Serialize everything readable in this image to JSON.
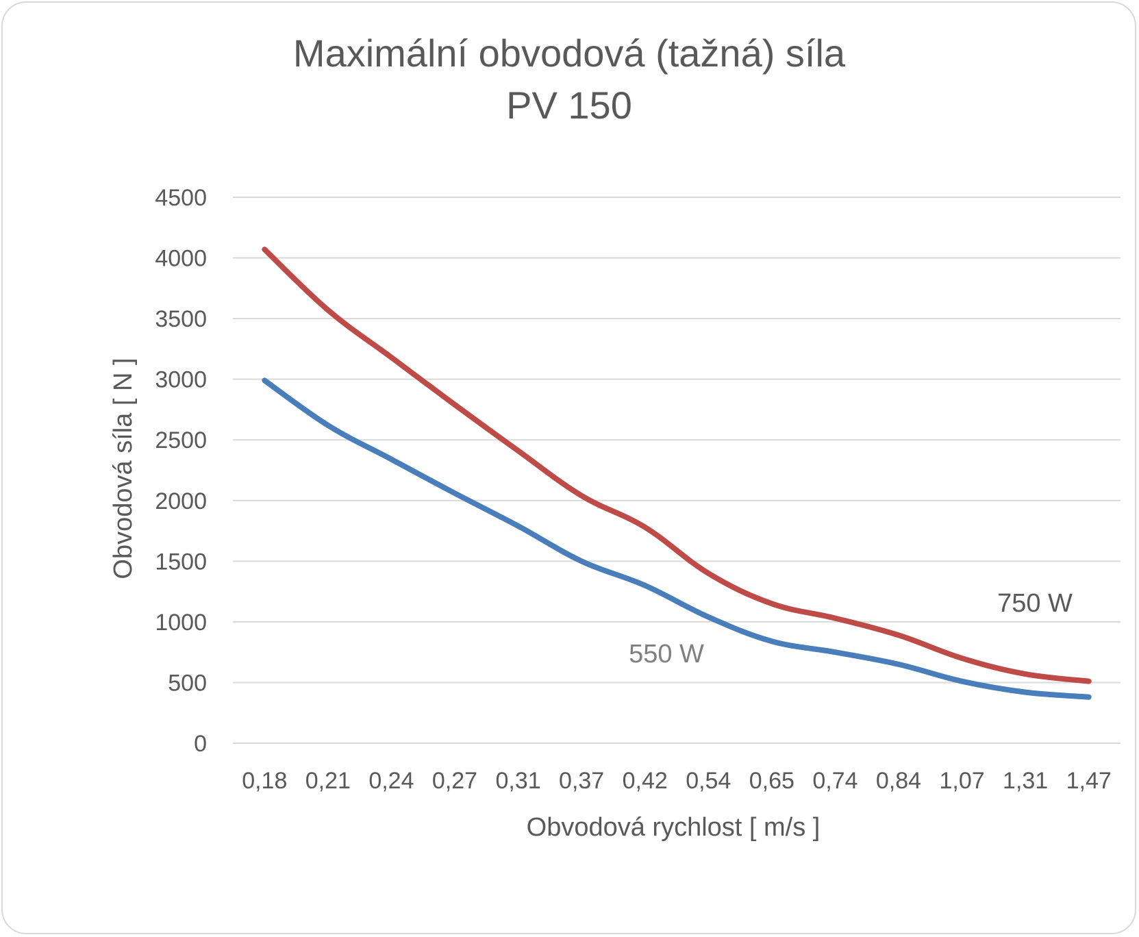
{
  "chart_data": {
    "type": "line",
    "title": "Maximální obvodová (tažná) síla",
    "subtitle": "PV 150",
    "xlabel": "Obvodová rychlost  [ m/s ]",
    "ylabel": "Obvodová síla  [ N ]",
    "ylim": [
      0,
      4500
    ],
    "yticks": [
      "0",
      "500",
      "1000",
      "1500",
      "2000",
      "2500",
      "3000",
      "3500",
      "4000",
      "4500"
    ],
    "grid": true,
    "categories": [
      "0,18",
      "0,21",
      "0,24",
      "0,27",
      "0,31",
      "0,37",
      "0,42",
      "0,54",
      "0,65",
      "0,74",
      "0,84",
      "1,07",
      "1,31",
      "1,47"
    ],
    "series": [
      {
        "name": "550 W",
        "color": "#4a7ebb",
        "label_color": "#7f7f7f",
        "values": [
          2990,
          2620,
          2340,
          2060,
          1790,
          1500,
          1300,
          1040,
          840,
          750,
          650,
          510,
          420,
          380
        ]
      },
      {
        "name": "750 W",
        "color": "#be4b48",
        "label_color": "#595959",
        "values": [
          4070,
          3570,
          3180,
          2790,
          2410,
          2040,
          1780,
          1400,
          1150,
          1030,
          890,
          700,
          570,
          510
        ]
      }
    ]
  }
}
